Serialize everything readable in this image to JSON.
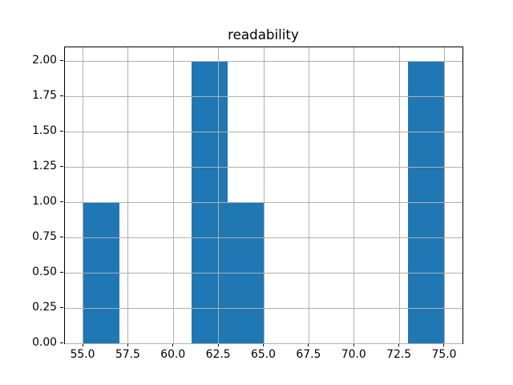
{
  "chart_data": {
    "type": "bar",
    "subtype": "histogram",
    "title": "readability",
    "xlabel": "",
    "ylabel": "",
    "bin_edges": [
      55,
      57,
      59,
      61,
      63,
      65,
      67,
      69,
      71,
      73,
      75
    ],
    "counts": [
      1,
      0,
      0,
      2,
      1,
      0,
      0,
      0,
      0,
      2
    ],
    "xlim": [
      54,
      76
    ],
    "ylim": [
      0,
      2.1
    ],
    "xtick_values": [
      55,
      57.5,
      60,
      62.5,
      65,
      67.5,
      70,
      72.5,
      75
    ],
    "xtick_labels": [
      "55.0",
      "57.5",
      "60.0",
      "62.5",
      "65.0",
      "67.5",
      "70.0",
      "72.5",
      "75.0"
    ],
    "ytick_values": [
      0,
      0.25,
      0.5,
      0.75,
      1,
      1.25,
      1.5,
      1.75,
      2
    ],
    "ytick_labels": [
      "0.00",
      "0.25",
      "0.50",
      "0.75",
      "1.00",
      "1.25",
      "1.50",
      "1.75",
      "2.00"
    ],
    "grid": true,
    "grid_over_bars": true,
    "legend": null,
    "colors": {
      "bar": "#1f77b4",
      "grid": "#b0b0b0",
      "spine": "#000000",
      "background": "#ffffff",
      "text": "#000000"
    }
  }
}
